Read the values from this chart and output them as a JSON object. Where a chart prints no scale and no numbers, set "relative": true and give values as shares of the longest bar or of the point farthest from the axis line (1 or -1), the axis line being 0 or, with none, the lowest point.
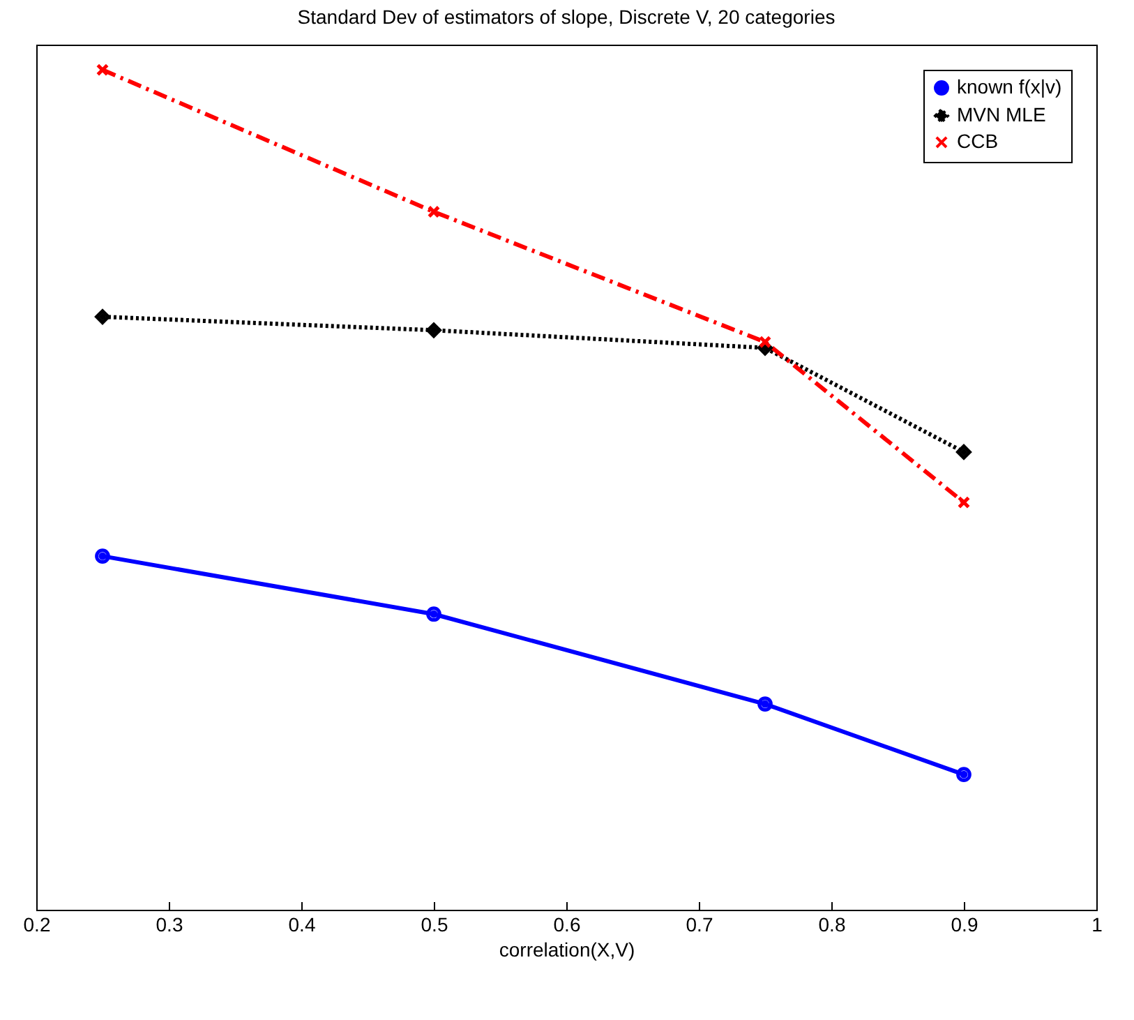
{
  "chart_data": {
    "type": "line",
    "title": "Standard Dev of estimators of slope, Discrete V, 20 categories",
    "xlabel": "correlation(X,V)",
    "relative": true,
    "x": [
      0.25,
      0.5,
      0.75,
      0.9
    ],
    "xlim": [
      0.2,
      1
    ],
    "xticks": [
      0.2,
      0.3,
      0.4,
      0.5,
      0.6,
      0.7,
      0.8,
      0.9,
      1
    ],
    "tick_labels": "x",
    "legend": "top right",
    "grid": false,
    "series": [
      {
        "name": "known f(x|v)",
        "color": "#0000ff",
        "marker": "circle",
        "line_style": "solid",
        "values": [
          0.421,
          0.352,
          0.245,
          0.161
        ]
      },
      {
        "name": "MVN MLE",
        "color": "#000000",
        "marker": "diamond",
        "line_style": "dotted",
        "values": [
          0.706,
          0.69,
          0.669,
          0.545
        ]
      },
      {
        "name": "CCB",
        "color": "#ff0000",
        "marker": "cross",
        "line_style": "dashed",
        "values": [
          1,
          0.831,
          0.676,
          0.485
        ]
      }
    ]
  }
}
